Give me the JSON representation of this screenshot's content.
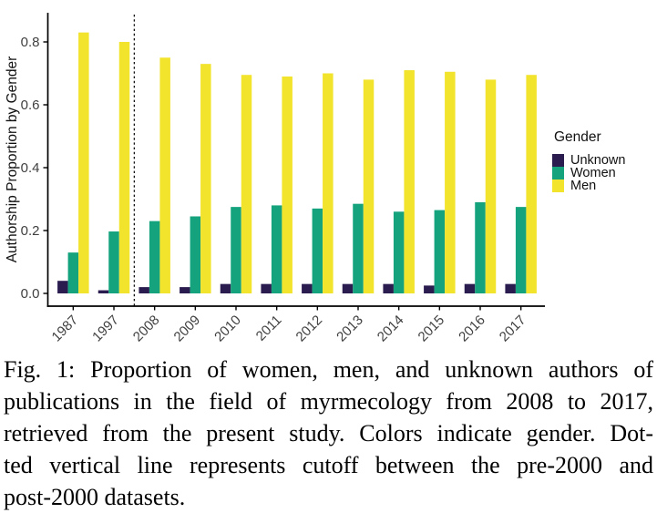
{
  "figure": {
    "caption_lines": [
      "Fig. 1: Proportion of women, men, and unknown authors of",
      "publications in the field of myrmecology from 2008 to 2017,",
      "retrieved from the present study. Colors indicate gender. Dot-",
      "ted vertical line represents cutoff between the pre-2000 and",
      "post-2000 datasets."
    ]
  },
  "chart_data": {
    "type": "bar",
    "title": "",
    "xlabel": "",
    "ylabel": "Authorship Proportion by Gender",
    "categories": [
      "1987",
      "1997",
      "2008",
      "2009",
      "2010",
      "2011",
      "2012",
      "2013",
      "2014",
      "2015",
      "2016",
      "2017"
    ],
    "series": [
      {
        "name": "Unknown",
        "color": "#2B1C4F",
        "values": [
          0.04,
          0.01,
          0.02,
          0.02,
          0.03,
          0.03,
          0.03,
          0.03,
          0.03,
          0.025,
          0.03,
          0.03
        ]
      },
      {
        "name": "Women",
        "color": "#14A37D",
        "values": [
          0.13,
          0.197,
          0.23,
          0.245,
          0.275,
          0.28,
          0.27,
          0.285,
          0.26,
          0.265,
          0.29,
          0.275
        ]
      },
      {
        "name": "Men",
        "color": "#F2E32C",
        "values": [
          0.83,
          0.8,
          0.75,
          0.73,
          0.695,
          0.69,
          0.7,
          0.68,
          0.71,
          0.705,
          0.68,
          0.695
        ]
      }
    ],
    "yticks": [
      0.0,
      0.2,
      0.4,
      0.6,
      0.8
    ],
    "ylim": [
      0,
      0.87
    ],
    "grid": false,
    "legend_title": "Gender",
    "legend_position": "right",
    "bar_mode": "dodge",
    "cutoff_line": {
      "between": [
        "1997",
        "2008"
      ],
      "style": "dotted",
      "color": "#000000"
    },
    "axis_color": "#000000"
  }
}
